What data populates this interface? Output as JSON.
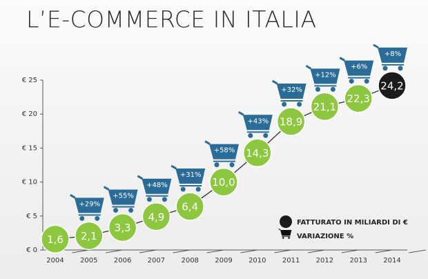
{
  "chart_data": {
    "type": "line",
    "title": "L’E-COMMERCE IN ITALIA",
    "categories": [
      "2004",
      "2005",
      "2006",
      "2007",
      "2008",
      "2009",
      "2010",
      "2011",
      "2012",
      "2013",
      "2014"
    ],
    "series": [
      {
        "name": "FATTURATO IN MILIARDI DI €",
        "color": "#8dc63f",
        "last_color": "#1c1c1c",
        "values": [
          1.6,
          2.1,
          3.3,
          4.9,
          6.4,
          10.0,
          14.3,
          18.9,
          21.1,
          22.3,
          24.2
        ],
        "value_labels": [
          "1,6",
          "2,1",
          "3,3",
          "4,9",
          "6,4",
          "10,0",
          "14,3",
          "18,9",
          "21,1",
          "22,3",
          "24,2"
        ]
      },
      {
        "name": "VARIAZIONE %",
        "color": "#2b6b97",
        "values": [
          null,
          29,
          55,
          48,
          31,
          58,
          43,
          32,
          12,
          6,
          8
        ],
        "value_labels": [
          null,
          "+29%",
          "+55%",
          "+48%",
          "+31%",
          "+58%",
          "+43%",
          "+32%",
          "+12%",
          "+6%",
          "+8%"
        ]
      }
    ],
    "ylim": [
      0,
      25
    ],
    "yticks": [
      {
        "value": 0,
        "label": "€ 0"
      },
      {
        "value": 5,
        "label": "€ 5"
      },
      {
        "value": 10,
        "label": "€ 10"
      },
      {
        "value": 15,
        "label": "€ 15"
      },
      {
        "value": 20,
        "label": "€ 20"
      },
      {
        "value": 25,
        "label": "€ 25"
      }
    ]
  }
}
